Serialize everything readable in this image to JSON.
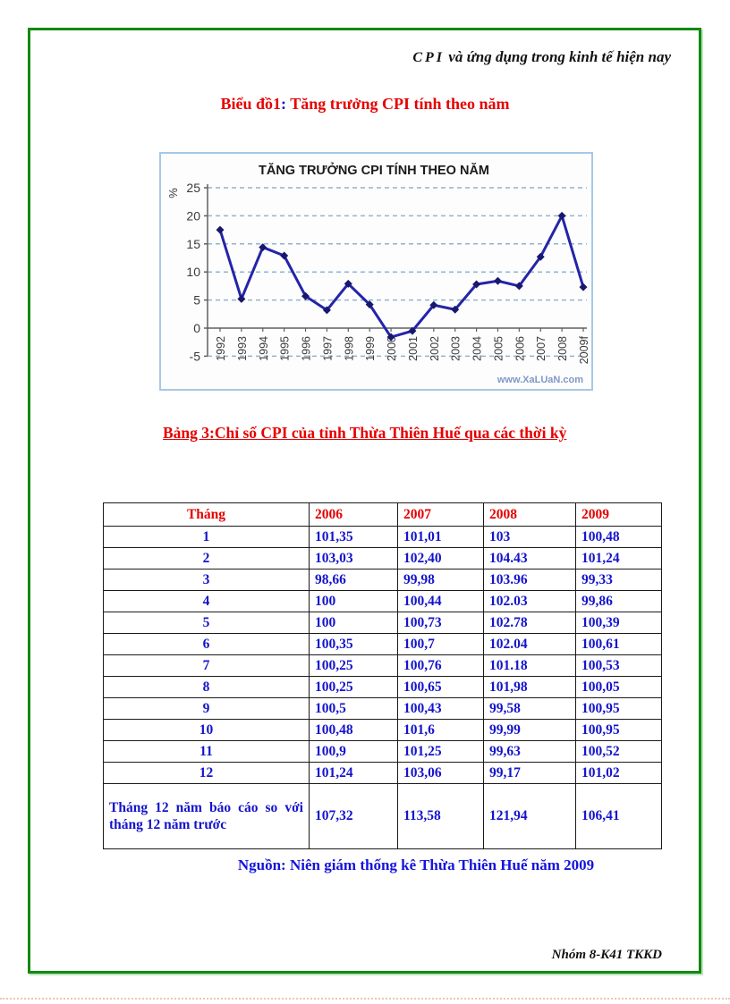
{
  "page": {
    "header_cpi": "CPI",
    "header_rest": " và ứng dụng trong kinh tế hiện nay",
    "footer_signature": "Nhóm 8-K41 TKKD"
  },
  "chart_section": {
    "caption_prefix": "Biểu đồ1",
    "caption_colon": ":",
    "caption_rest": " Tăng trưởng CPI tính theo năm"
  },
  "chart_data": {
    "type": "line",
    "title": "TĂNG TRƯỞNG CPI TÍNH THEO NĂM",
    "ylabel": "%",
    "xlabel": "",
    "categories": [
      "1992",
      "1993",
      "1994",
      "1995",
      "1996",
      "1997",
      "1998",
      "1999",
      "2000",
      "2001",
      "2002",
      "2003",
      "2004",
      "2005",
      "2006",
      "2007",
      "2008",
      "2009f"
    ],
    "values": [
      17.5,
      5.2,
      14.4,
      12.9,
      5.7,
      3.2,
      7.9,
      4.2,
      -1.6,
      -0.5,
      4.1,
      3.3,
      7.8,
      8.4,
      7.5,
      12.7,
      20.0,
      7.3
    ],
    "ylim": [
      -5,
      25
    ],
    "yticks": [
      25,
      20,
      15,
      10,
      5,
      0,
      -5
    ],
    "grid": "dashed horizontal",
    "legend": "none",
    "watermark": "www.XaLUaN.com"
  },
  "table": {
    "caption": "Bảng 3:Chỉ  số CPI của tỉnh Thừa Thiên Huế qua các thời kỳ",
    "columns": [
      "Tháng",
      "2006",
      "2007",
      "2008",
      "2009"
    ],
    "rows": [
      [
        "1",
        "101,35",
        "101,01",
        "103",
        "100,48"
      ],
      [
        "2",
        "103,03",
        "102,40",
        "104.43",
        "101,24"
      ],
      [
        "3",
        "98,66",
        "99,98",
        "103.96",
        "99,33"
      ],
      [
        "4",
        "100",
        "100,44",
        "102.03",
        "99,86"
      ],
      [
        "5",
        "100",
        "100,73",
        "102.78",
        "100,39"
      ],
      [
        "6",
        "100,35",
        "100,7",
        "102.04",
        "100,61"
      ],
      [
        "7",
        "100,25",
        "100,76",
        "101.18",
        "100,53"
      ],
      [
        "8",
        "100,25",
        "100,65",
        "101,98",
        "100,05"
      ],
      [
        "9",
        "100,5",
        "100,43",
        "99,58",
        "100,95"
      ],
      [
        "10",
        "100,48",
        "101,6",
        "99,99",
        "100,95"
      ],
      [
        "11",
        "100,9",
        "101,25",
        "99,63",
        "100,52"
      ],
      [
        "12",
        "101,24",
        "103,06",
        "99,17",
        "101,02"
      ]
    ],
    "summary_row": {
      "label": "Tháng  12 năm báo cáo so  với  tháng  12  năm trước",
      "values": [
        "107,32",
        "113,58",
        "121,94",
        "106,41"
      ]
    },
    "source": "Nguồn: Niên giám thống kê Thừa Thiên Huế năm 2009"
  },
  "colors": {
    "border_green": "#118a11",
    "heading_red": "#e60000",
    "data_blue": "#1414cc",
    "chart_line": "#2424aa",
    "chart_marker": "#18186e",
    "gridline_blue": "#8fb4d2",
    "chart_border": "#a8c8e4",
    "watermark_blue": "#8098c8"
  }
}
